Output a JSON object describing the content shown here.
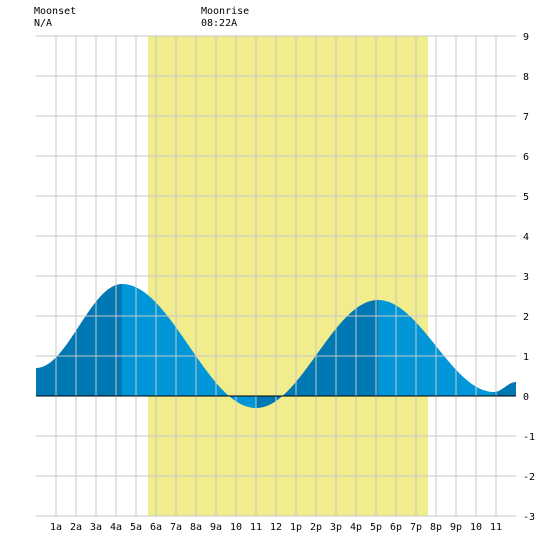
{
  "header": {
    "moonset": {
      "label": "Moonset",
      "time": "N/A"
    },
    "moonrise": {
      "label": "Moonrise",
      "time": "08:22A"
    }
  },
  "colors": {
    "background": "#ffffff",
    "daylight": "#f1ec8c",
    "grid": "#c8c8c8",
    "tide_light": "#0096d8",
    "tide_dark": "#0078b4",
    "zero_line": "#000000"
  },
  "chart_data": {
    "type": "area",
    "x_unit": "hour of day",
    "xlim": [
      0,
      24
    ],
    "ylim": [
      -3,
      9
    ],
    "y_ticks": [
      -3,
      -2,
      -1,
      0,
      1,
      2,
      3,
      4,
      5,
      6,
      7,
      8,
      9
    ],
    "x_ticks": [
      {
        "hour": 1,
        "label": "1a"
      },
      {
        "hour": 2,
        "label": "2a"
      },
      {
        "hour": 3,
        "label": "3a"
      },
      {
        "hour": 4,
        "label": "4a"
      },
      {
        "hour": 5,
        "label": "5a"
      },
      {
        "hour": 6,
        "label": "6a"
      },
      {
        "hour": 7,
        "label": "7a"
      },
      {
        "hour": 8,
        "label": "8a"
      },
      {
        "hour": 9,
        "label": "9a"
      },
      {
        "hour": 10,
        "label": "10"
      },
      {
        "hour": 11,
        "label": "11"
      },
      {
        "hour": 12,
        "label": "12"
      },
      {
        "hour": 13,
        "label": "1p"
      },
      {
        "hour": 14,
        "label": "2p"
      },
      {
        "hour": 15,
        "label": "3p"
      },
      {
        "hour": 16,
        "label": "4p"
      },
      {
        "hour": 17,
        "label": "5p"
      },
      {
        "hour": 18,
        "label": "6p"
      },
      {
        "hour": 19,
        "label": "7p"
      },
      {
        "hour": 20,
        "label": "8p"
      },
      {
        "hour": 21,
        "label": "9p"
      },
      {
        "hour": 22,
        "label": "10"
      },
      {
        "hour": 23,
        "label": "11"
      }
    ],
    "daylight": {
      "start_hour": 5.6,
      "end_hour": 19.6
    },
    "tide_extremes": [
      {
        "hour": 4.3,
        "height": 2.8,
        "kind": "high"
      },
      {
        "hour": 11.0,
        "height": -0.3,
        "kind": "low"
      },
      {
        "hour": 17.1,
        "height": 2.4,
        "kind": "high"
      },
      {
        "hour": 22.9,
        "height": 0.1,
        "kind": "low"
      }
    ],
    "tide_start": {
      "hour": 0,
      "height": 0.7
    },
    "tide_end": {
      "hour": 24,
      "height": 0.35
    }
  }
}
